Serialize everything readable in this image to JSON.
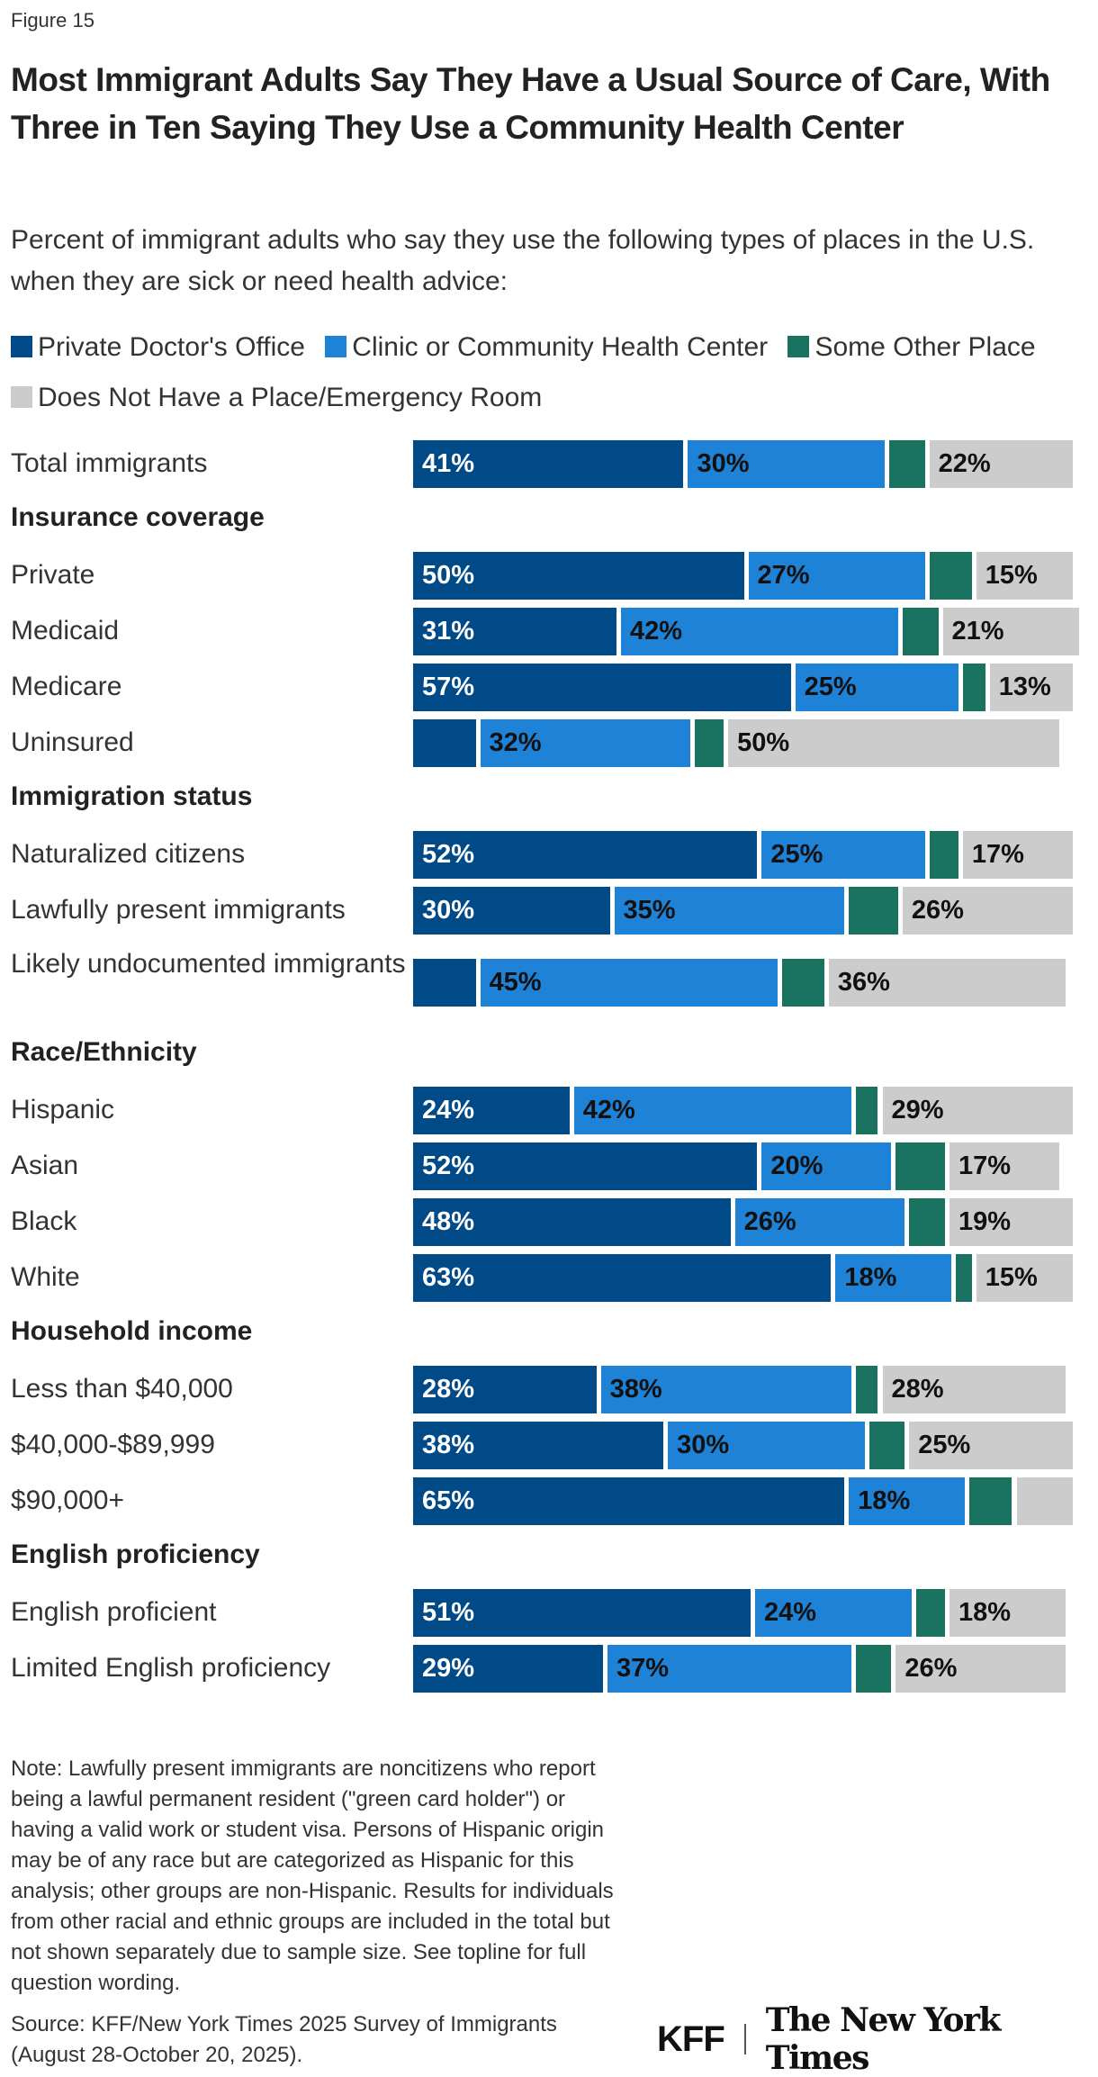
{
  "figure_label": "Figure 15",
  "chart_data": {
    "type": "bar",
    "orientation": "horizontal",
    "stacked": true,
    "title": "Most Immigrant Adults Say They Have a Usual Source of Care, With Three in Ten Saying They Use a Community Health Center",
    "subtitle": "Percent of immigrant adults who say they use the following types of places in the U.S. when they are sick or need health advice:",
    "legend_position": "top",
    "grid": false,
    "xlim": [
      0,
      100
    ],
    "colors": [
      "#004a87",
      "#1e82d7",
      "#1a7361",
      "#cccccc"
    ],
    "rows": [
      {
        "label": "Total immigrants"
      },
      {
        "header": "Insurance coverage"
      },
      {
        "label": "Private"
      },
      {
        "label": "Medicaid"
      },
      {
        "label": "Medicare"
      },
      {
        "label": "Uninsured"
      },
      {
        "header": "Immigration status"
      },
      {
        "label": "Naturalized citizens"
      },
      {
        "label": "Lawfully present immigrants"
      },
      {
        "label": "Likely undocumented immigrants"
      },
      {
        "header": "Race/Ethnicity"
      },
      {
        "label": "Hispanic"
      },
      {
        "label": "Asian"
      },
      {
        "label": "Black"
      },
      {
        "label": "White"
      },
      {
        "header": "Household income"
      },
      {
        "label": "Less than $40,000"
      },
      {
        "label": "$40,000-$89,999"
      },
      {
        "label": "$90,000+"
      },
      {
        "header": "English proficiency"
      },
      {
        "label": "English proficient"
      },
      {
        "label": "Limited English proficiency"
      }
    ],
    "series": [
      {
        "name": "Private Doctor's Office",
        "values": [
          41,
          50,
          31,
          57,
          10,
          52,
          30,
          10,
          24,
          52,
          48,
          63,
          28,
          38,
          65,
          51,
          29
        ]
      },
      {
        "name": "Clinic or Community Health Center",
        "values": [
          30,
          27,
          42,
          25,
          32,
          25,
          35,
          45,
          42,
          20,
          26,
          18,
          38,
          30,
          18,
          24,
          37
        ]
      },
      {
        "name": "Some Other Place",
        "values": [
          6,
          7,
          6,
          4,
          5,
          5,
          8,
          7,
          4,
          8,
          6,
          3,
          4,
          6,
          7,
          5,
          6
        ]
      },
      {
        "name": "Does Not Have a Place/Emergency Room",
        "values": [
          22,
          15,
          21,
          13,
          50,
          17,
          26,
          36,
          29,
          17,
          19,
          15,
          28,
          25,
          9,
          18,
          26
        ]
      }
    ]
  },
  "note": "Note: Lawfully present immigrants are noncitizens who report being a lawful permanent resident (\"green card holder\") or having a valid work or student visa. Persons of Hispanic origin may be of any race but are categorized as Hispanic for this analysis; other groups are non-Hispanic. Results for individuals from other racial and ethnic groups are included in the total but not shown separately due to sample size. See topline for full question wording.",
  "source": "Source: KFF/New York Times 2025 Survey of Immigrants (August 28-October 20, 2025).",
  "logos": {
    "kff": "KFF",
    "nyt": "The New York Times"
  }
}
